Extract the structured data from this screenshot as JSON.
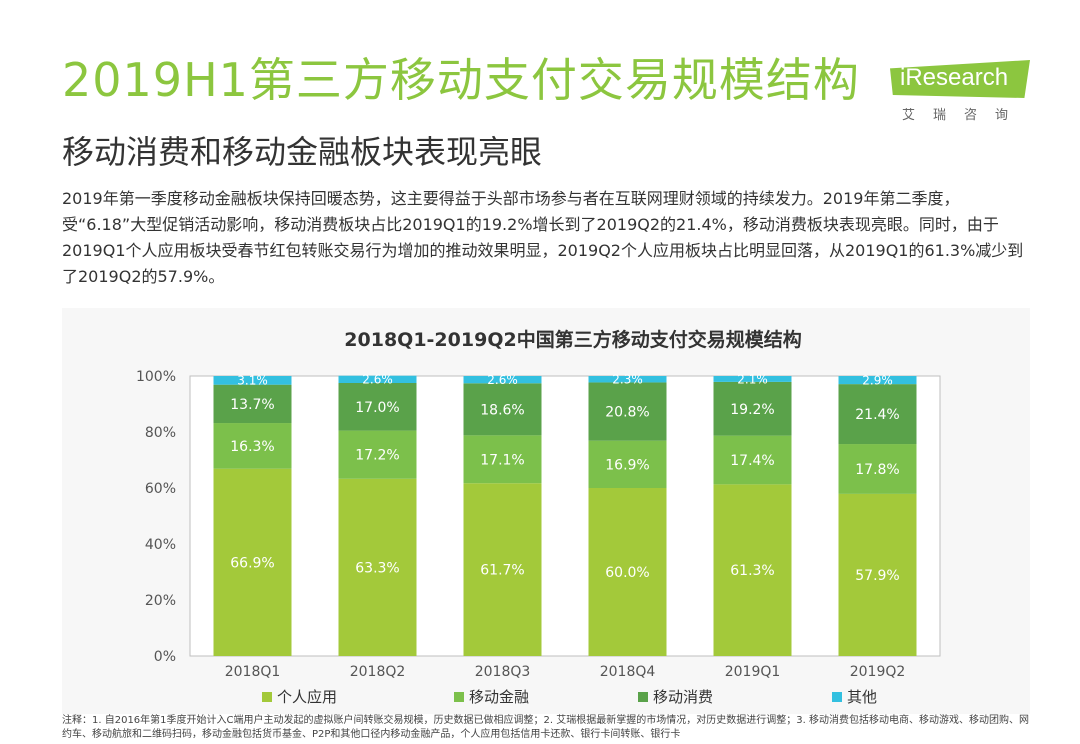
{
  "header": {
    "title": "2019H1第三方移动支付交易规模结构",
    "subtitle": "移动消费和移动金融板块表现亮眼"
  },
  "logo": {
    "name": "iResearch",
    "chinese": "艾瑞咨询"
  },
  "body": {
    "paragraph": "2019年第一季度移动金融板块保持回暖态势，这主要得益于头部市场参与者在互联网理财领域的持续发力。2019年第二季度，受“6.18”大型促销活动影响，移动消费板块占比2019Q1的19.2%增长到了2019Q2的21.4%，移动消费板块表现亮眼。同时，由于2019Q1个人应用板块受春节红包转账交易行为增加的推动效果明显，2019Q2个人应用板块占比明显回落，从2019Q1的61.3%减少到了2019Q2的57.9%。"
  },
  "chart_data": {
    "type": "bar",
    "stacked": true,
    "title": "2018Q1-2019Q2中国第三方移动支付交易规模结构",
    "categories": [
      "2018Q1",
      "2018Q2",
      "2018Q3",
      "2018Q4",
      "2019Q1",
      "2019Q2"
    ],
    "series": [
      {
        "name": "个人应用",
        "color": "#a3c93a",
        "values": [
          66.9,
          63.3,
          61.7,
          60.0,
          61.3,
          57.9
        ]
      },
      {
        "name": "移动金融",
        "color": "#7cc04b",
        "values": [
          16.3,
          17.2,
          17.1,
          16.9,
          17.4,
          17.8
        ]
      },
      {
        "name": "移动消费",
        "color": "#5aa24a",
        "values": [
          13.7,
          17.0,
          18.6,
          20.8,
          19.2,
          21.4
        ]
      },
      {
        "name": "其他",
        "color": "#33c0e0",
        "values": [
          3.1,
          2.6,
          2.6,
          2.3,
          2.1,
          2.9
        ]
      }
    ],
    "yticks": [
      "0%",
      "20%",
      "40%",
      "60%",
      "80%",
      "100%"
    ],
    "ylim": [
      0,
      100
    ],
    "xlabel": "",
    "ylabel": "",
    "legend_position": "bottom",
    "grid": false
  },
  "footnote": {
    "text": "注释：1. 自2016年第1季度开始计入C端用户主动发起的虚拟账户间转账交易规模，历史数据已做相应调整；2. 艾瑞根据最新掌握的市场情况，对历史数据进行调整；3. 移动消费包括移动电商、移动游戏、移动团购、网约车、移动航旅和二维码扫码，移动金融包括货币基金、P2P和其他口径内移动金融产品，个人应用包括信用卡还款、银行卡间转账、银行卡"
  }
}
